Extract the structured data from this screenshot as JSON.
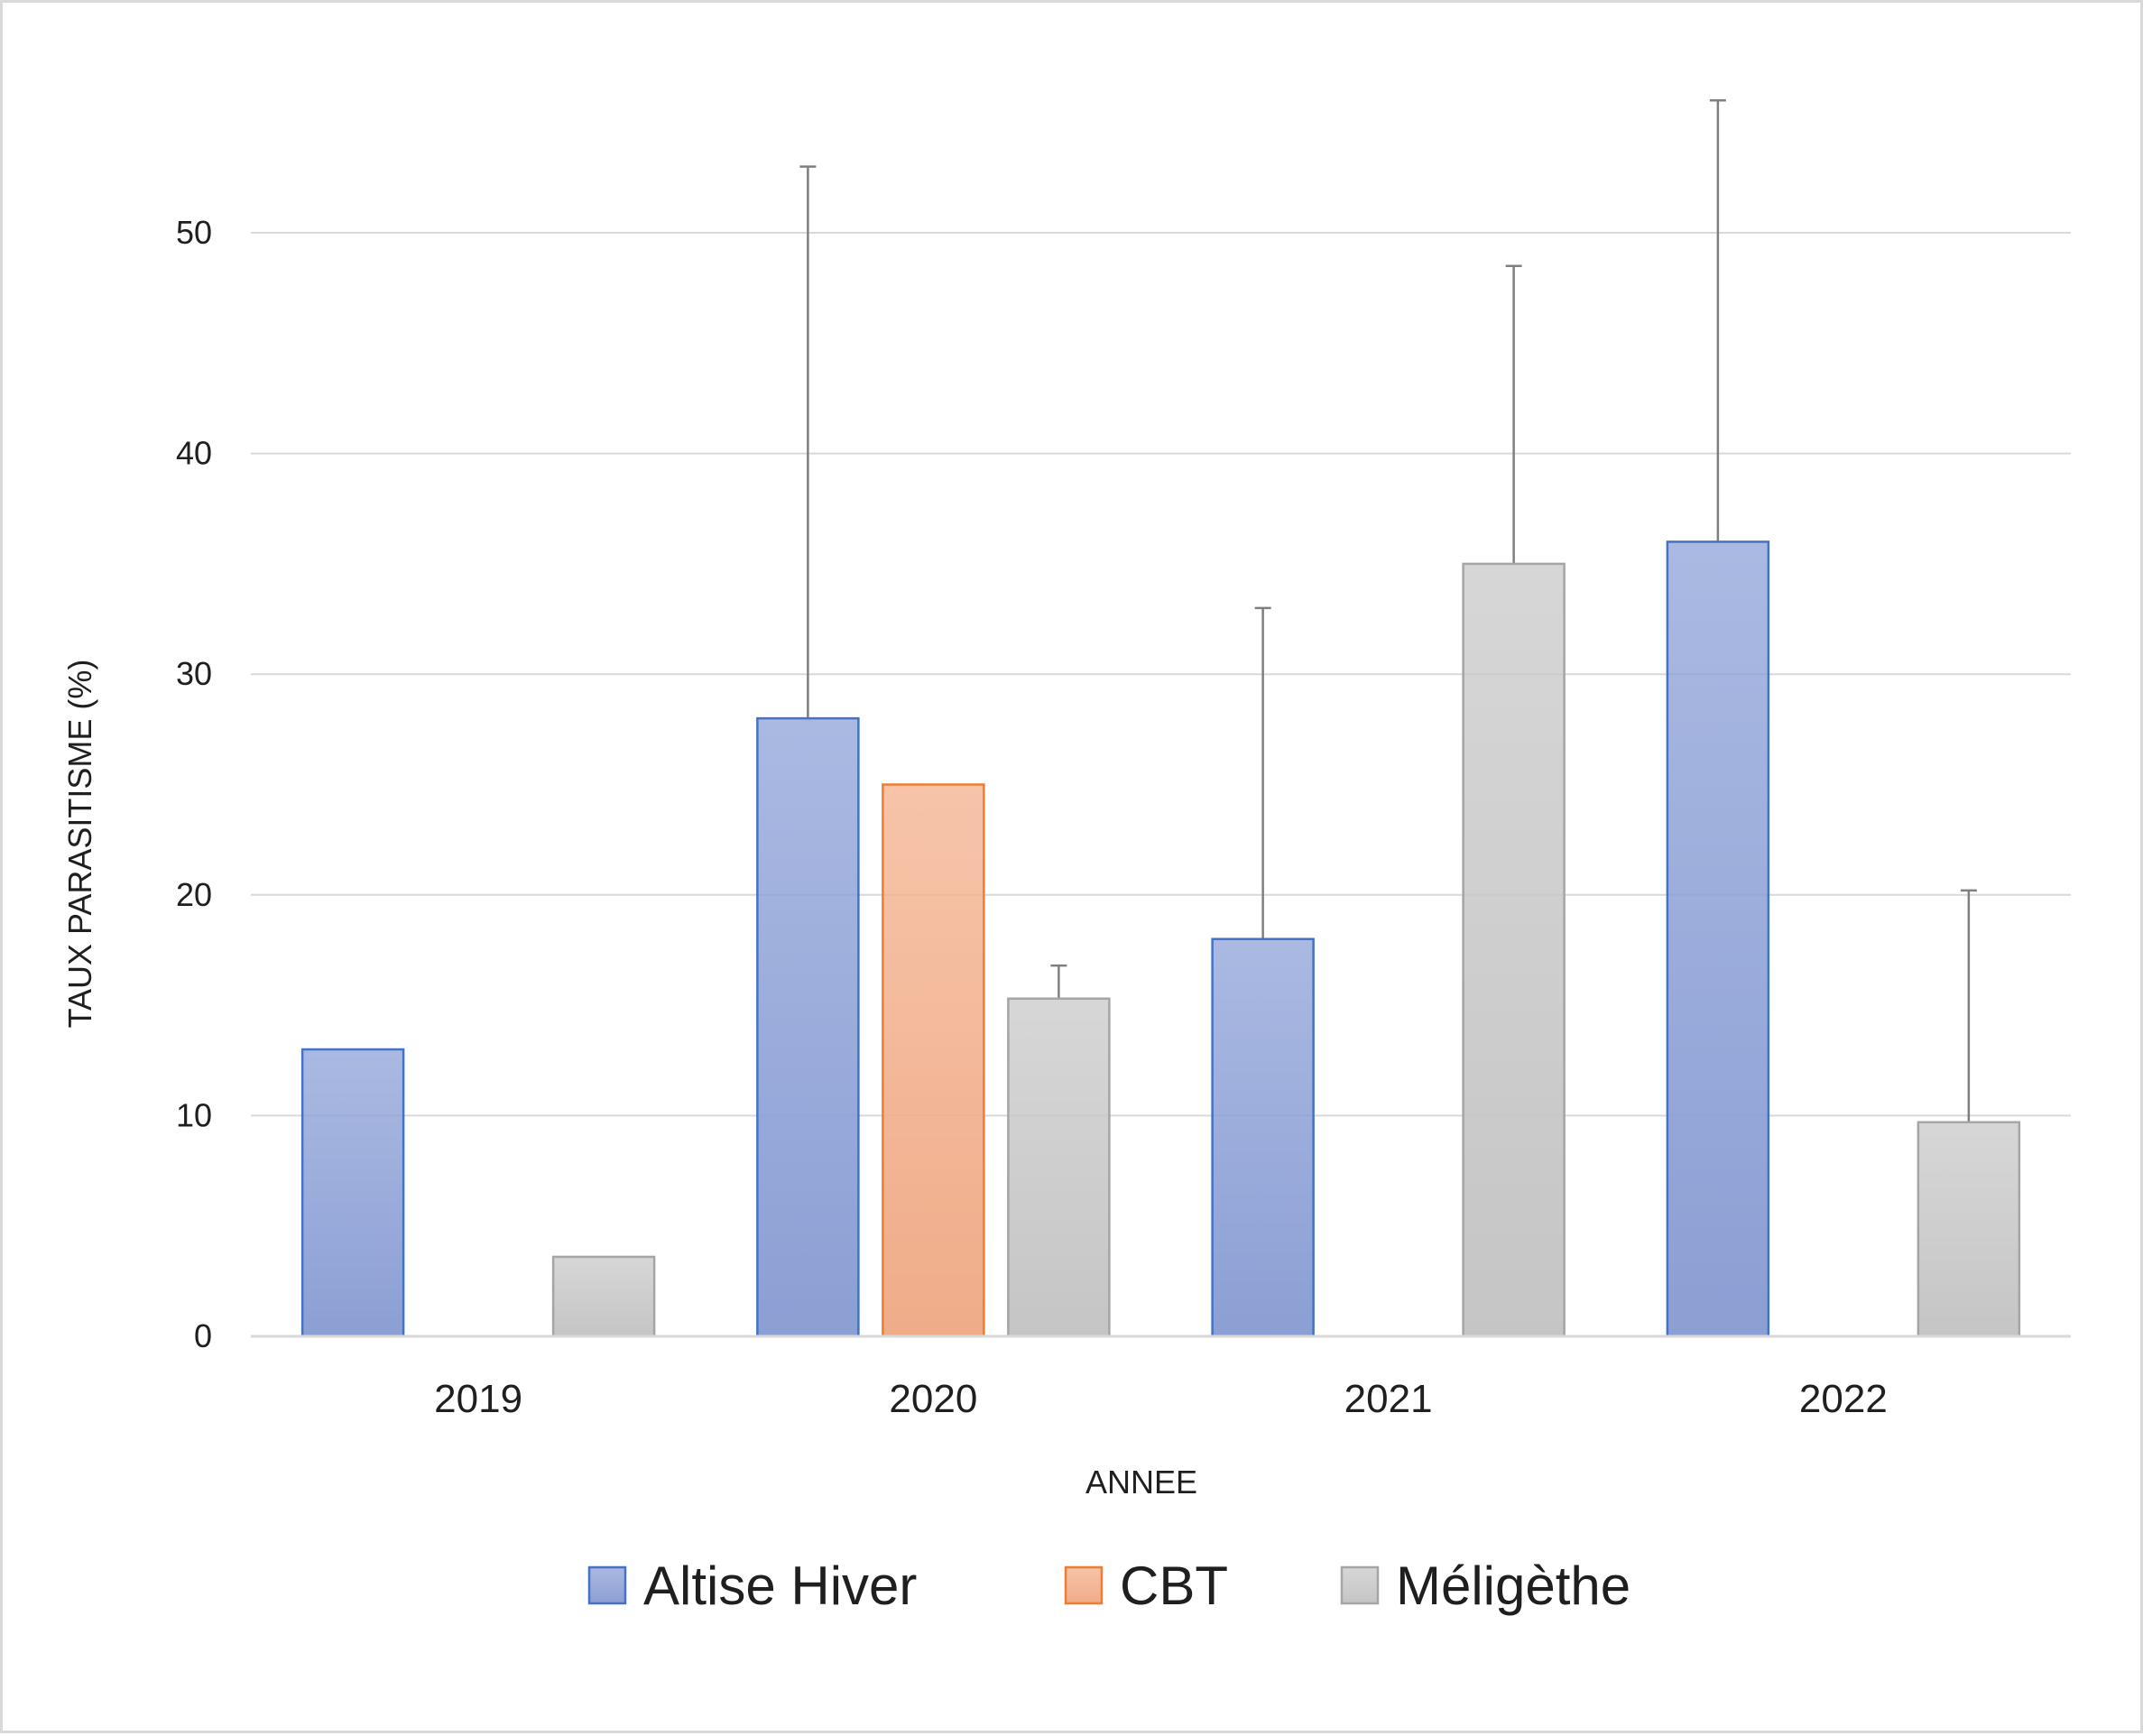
{
  "chart_data": {
    "type": "bar",
    "title": "",
    "xlabel": "ANNEE",
    "ylabel": "TAUX PARASITISME (%)",
    "categories": [
      "2019",
      "2020",
      "2021",
      "2022"
    ],
    "ylim": [
      0,
      55
    ],
    "yticks": [
      0,
      10,
      20,
      30,
      40,
      50
    ],
    "grid": true,
    "legend_position": "bottom",
    "series": [
      {
        "name": "Altise Hiver",
        "key": "altise",
        "color": "#8ea2d8",
        "border": "#4472c4",
        "values": [
          13,
          28,
          18,
          36
        ],
        "error_upper": [
          null,
          53,
          33,
          56
        ]
      },
      {
        "name": "CBT",
        "key": "cbt",
        "color": "#f4b08c",
        "border": "#ed7d31",
        "values": [
          null,
          25,
          null,
          null
        ],
        "error_upper": [
          null,
          null,
          null,
          null
        ]
      },
      {
        "name": "Méligèthe",
        "key": "meligethe",
        "color": "#c9c9c9",
        "border": "#a5a5a5",
        "values": [
          3.6,
          15.3,
          35,
          9.7
        ],
        "error_upper": [
          null,
          16.8,
          48.5,
          20.2
        ]
      }
    ]
  }
}
